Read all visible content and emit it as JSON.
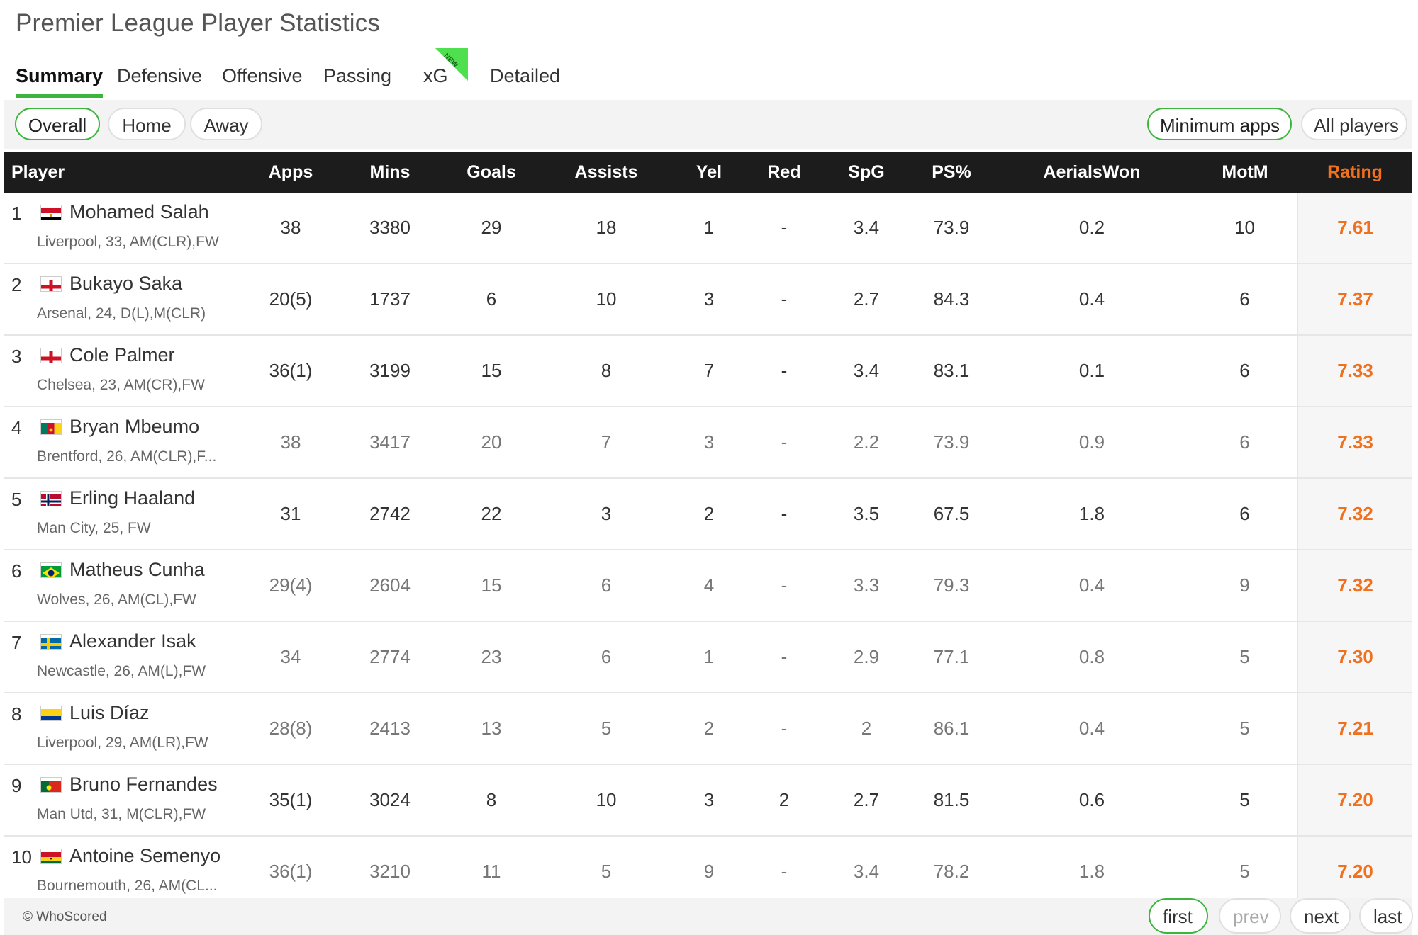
{
  "page_title": "Premier League Player Statistics",
  "tabs": [
    {
      "label": "Summary",
      "active": true
    },
    {
      "label": "Defensive"
    },
    {
      "label": "Offensive"
    },
    {
      "label": "Passing"
    },
    {
      "label": "xG",
      "badge": "NEW"
    },
    {
      "label": "Detailed"
    }
  ],
  "filters": {
    "location": [
      "Overall",
      "Home",
      "Away"
    ],
    "apps": [
      "Minimum apps",
      "All players"
    ]
  },
  "columns": [
    "Player",
    "Apps",
    "Mins",
    "Goals",
    "Assists",
    "Yel",
    "Red",
    "SpG",
    "PS%",
    "AerialsWon",
    "MotM",
    "Rating"
  ],
  "accent_color": "#3db53d",
  "rating_color": "#f0701e",
  "players": [
    {
      "rank": "1",
      "flag": "egypt",
      "name": "Mohamed Salah",
      "team": "Liverpool",
      "age": "33",
      "pos": "AM(CLR),FW",
      "apps": "38",
      "mins": "3380",
      "goals": "29",
      "assists": "18",
      "yel": "1",
      "red": "-",
      "spg": "3.4",
      "ps": "73.9",
      "aerials": "0.2",
      "motm": "10",
      "rating": "7.61"
    },
    {
      "rank": "2",
      "flag": "england",
      "name": "Bukayo Saka",
      "team": "Arsenal",
      "age": "24",
      "pos": "D(L),M(CLR)",
      "apps": "20(5)",
      "mins": "1737",
      "goals": "6",
      "assists": "10",
      "yel": "3",
      "red": "-",
      "spg": "2.7",
      "ps": "84.3",
      "aerials": "0.4",
      "motm": "6",
      "rating": "7.37"
    },
    {
      "rank": "3",
      "flag": "england",
      "name": "Cole Palmer",
      "team": "Chelsea",
      "age": "23",
      "pos": "AM(CR),FW",
      "apps": "36(1)",
      "mins": "3199",
      "goals": "15",
      "assists": "8",
      "yel": "7",
      "red": "-",
      "spg": "3.4",
      "ps": "83.1",
      "aerials": "0.1",
      "motm": "6",
      "rating": "7.33"
    },
    {
      "rank": "4",
      "flag": "cameroon",
      "name": "Bryan Mbeumo",
      "team": "Brentford",
      "age": "26",
      "pos": "AM(CLR),F...",
      "apps": "38",
      "mins": "3417",
      "goals": "20",
      "assists": "7",
      "yel": "3",
      "red": "-",
      "spg": "2.2",
      "ps": "73.9",
      "aerials": "0.9",
      "motm": "6",
      "rating": "7.33"
    },
    {
      "rank": "5",
      "flag": "norway",
      "name": "Erling Haaland",
      "team": "Man City",
      "age": "25",
      "pos": "FW",
      "apps": "31",
      "mins": "2742",
      "goals": "22",
      "assists": "3",
      "yel": "2",
      "red": "-",
      "spg": "3.5",
      "ps": "67.5",
      "aerials": "1.8",
      "motm": "6",
      "rating": "7.32"
    },
    {
      "rank": "6",
      "flag": "brazil",
      "name": "Matheus Cunha",
      "team": "Wolves",
      "age": "26",
      "pos": "AM(CL),FW",
      "apps": "29(4)",
      "mins": "2604",
      "goals": "15",
      "assists": "6",
      "yel": "4",
      "red": "-",
      "spg": "3.3",
      "ps": "79.3",
      "aerials": "0.4",
      "motm": "9",
      "rating": "7.32"
    },
    {
      "rank": "7",
      "flag": "sweden",
      "name": "Alexander Isak",
      "team": "Newcastle",
      "age": "26",
      "pos": "AM(L),FW",
      "apps": "34",
      "mins": "2774",
      "goals": "23",
      "assists": "6",
      "yel": "1",
      "red": "-",
      "spg": "2.9",
      "ps": "77.1",
      "aerials": "0.8",
      "motm": "5",
      "rating": "7.30"
    },
    {
      "rank": "8",
      "flag": "colombia",
      "name": "Luis Díaz",
      "team": "Liverpool",
      "age": "29",
      "pos": "AM(LR),FW",
      "apps": "28(8)",
      "mins": "2413",
      "goals": "13",
      "assists": "5",
      "yel": "2",
      "red": "-",
      "spg": "2",
      "ps": "86.1",
      "aerials": "0.4",
      "motm": "5",
      "rating": "7.21"
    },
    {
      "rank": "9",
      "flag": "portugal",
      "name": "Bruno Fernandes",
      "team": "Man Utd",
      "age": "31",
      "pos": "M(CLR),FW",
      "apps": "35(1)",
      "mins": "3024",
      "goals": "8",
      "assists": "10",
      "yel": "3",
      "red": "2",
      "spg": "2.7",
      "ps": "81.5",
      "aerials": "0.6",
      "motm": "5",
      "rating": "7.20"
    },
    {
      "rank": "10",
      "flag": "ghana",
      "name": "Antoine Semenyo",
      "team": "Bournemouth",
      "age": "26",
      "pos": "AM(CL...",
      "apps": "36(1)",
      "mins": "3210",
      "goals": "11",
      "assists": "5",
      "yel": "9",
      "red": "-",
      "spg": "3.4",
      "ps": "78.2",
      "aerials": "1.8",
      "motm": "5",
      "rating": "7.20"
    }
  ],
  "footer": {
    "copyright": "© WhoScored",
    "pager": [
      "first",
      "prev",
      "next",
      "last"
    ]
  }
}
